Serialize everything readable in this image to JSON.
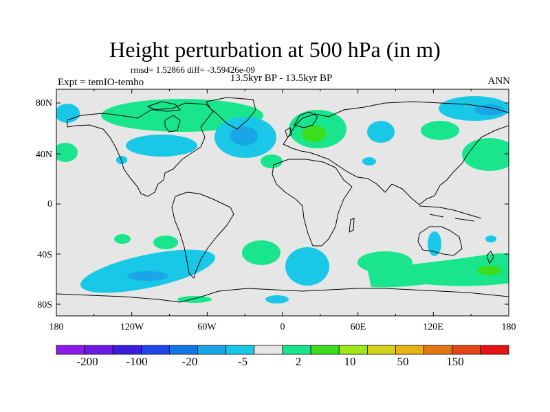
{
  "header": {
    "title": "Height perturbation at 500 hPa (in m)",
    "stats": "rmsd= 1.52866 diff= -3.59426e-09",
    "experiment": "Expt = temIO-temho",
    "subtitle": "13.5kyr BP - 13.5kyr BP",
    "season": "ANN"
  },
  "map": {
    "background_color": "#e6e6e6",
    "coastline_color": "#000000",
    "y_tick_labels": [
      "80N",
      "40N",
      "0",
      "40S",
      "80S"
    ],
    "x_tick_labels": [
      "180",
      "120W",
      "60W",
      "0",
      "60E",
      "120E",
      "180"
    ]
  },
  "colorbar": {
    "colors": [
      "#8c1aeb",
      "#6b1ae6",
      "#3b1ee0",
      "#1e46e6",
      "#0f78e6",
      "#19a5e6",
      "#19c8e6",
      "#e6e6e6",
      "#19e68c",
      "#3cdc1e",
      "#a0e619",
      "#d2d219",
      "#e6b414",
      "#e67814",
      "#e64614",
      "#e61414"
    ],
    "labels": [
      "-200",
      "-100",
      "-20",
      "-5",
      "2",
      "10",
      "50",
      "150"
    ]
  }
}
